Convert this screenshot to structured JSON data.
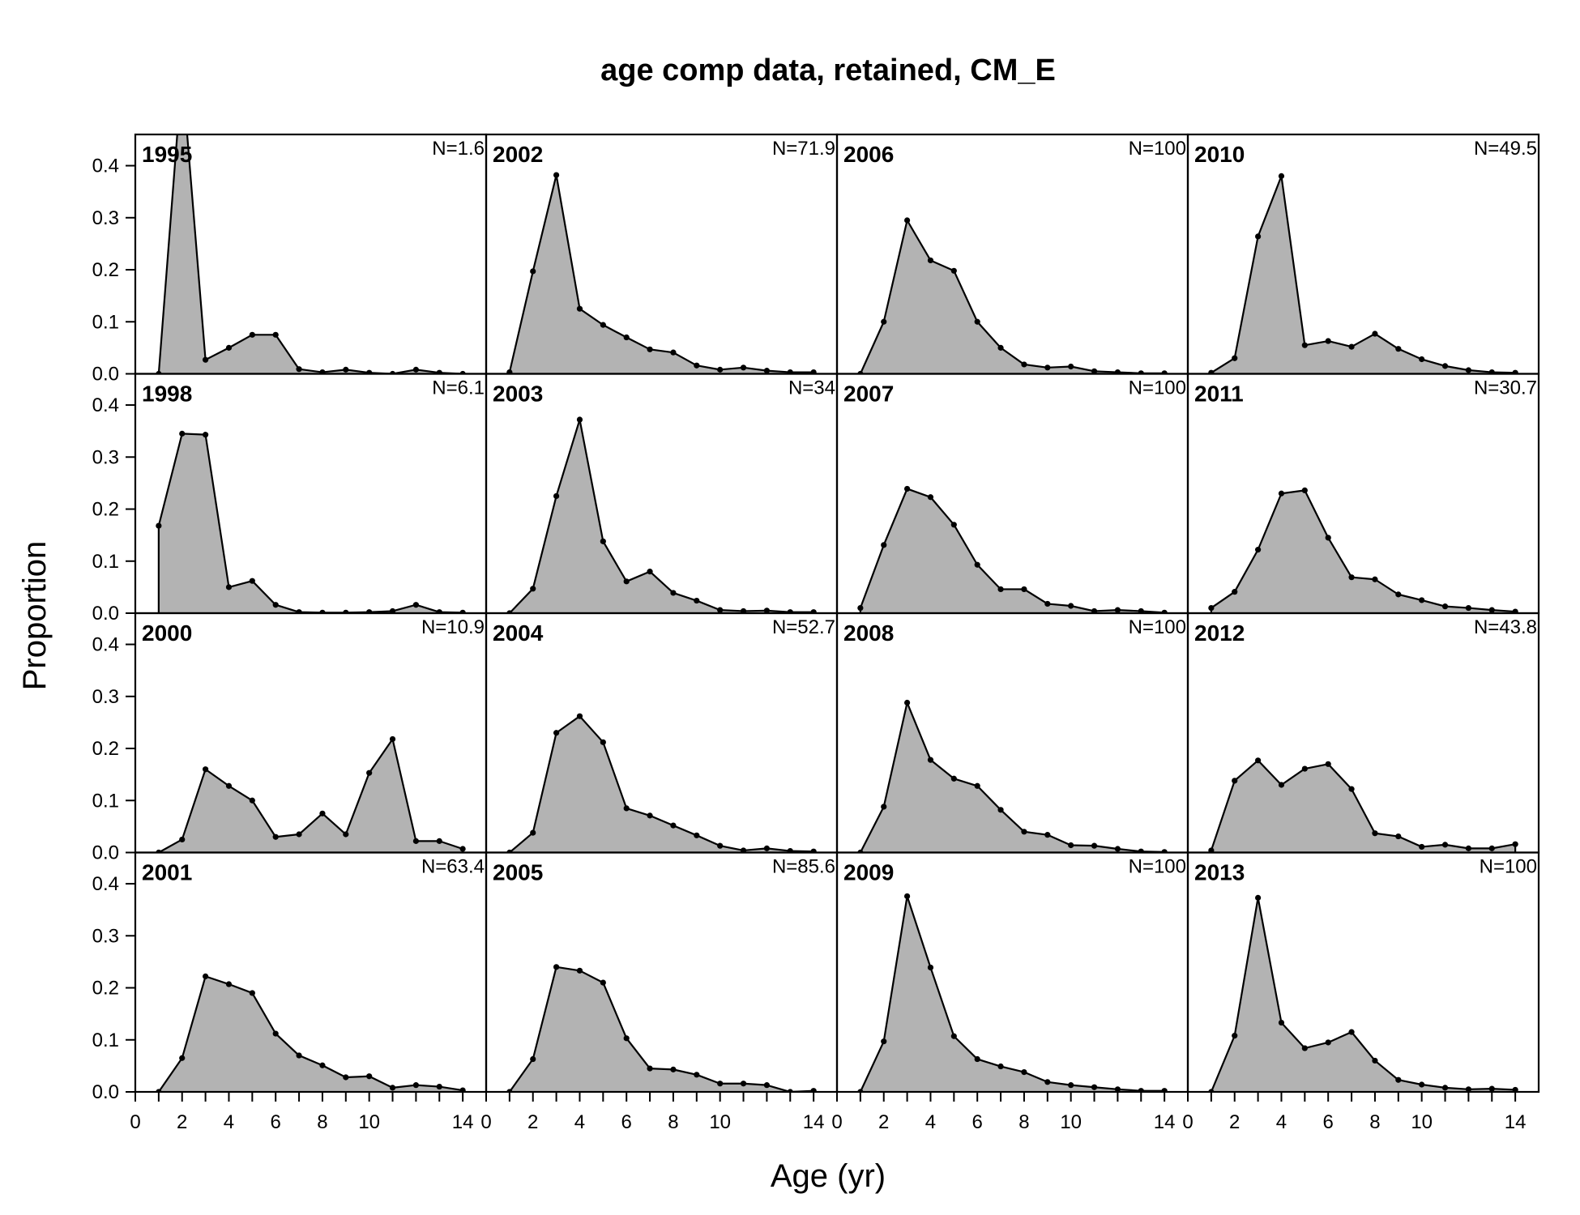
{
  "chart_data": {
    "type": "area",
    "title": "age comp data, retained, CM_E",
    "xlabel": "Age (yr)",
    "ylabel": "Proportion",
    "xlim": [
      0,
      15
    ],
    "ylim": [
      0,
      0.46
    ],
    "x_ticks": [
      "0",
      "2",
      "4",
      "6",
      "8",
      "10",
      "14"
    ],
    "y_ticks": [
      "0.0",
      "0.1",
      "0.2",
      "0.3",
      "0.4"
    ],
    "ages": [
      1,
      2,
      3,
      4,
      5,
      6,
      7,
      8,
      9,
      10,
      11,
      12,
      13,
      14
    ],
    "panels": [
      {
        "year": "1995",
        "n": "N=1.6",
        "values": [
          0,
          0.58,
          0.027,
          0.05,
          0.075,
          0.075,
          0.009,
          0.003,
          0.008,
          0.002,
          0,
          0.008,
          0.002,
          0
        ]
      },
      {
        "year": "1998",
        "n": "N=6.1",
        "values": [
          0.168,
          0.345,
          0.343,
          0.05,
          0.062,
          0.016,
          0.002,
          0.001,
          0.001,
          0.002,
          0.004,
          0.016,
          0.002,
          0.001
        ]
      },
      {
        "year": "2000",
        "n": "N=10.9",
        "values": [
          0,
          0.025,
          0.16,
          0.128,
          0.1,
          0.03,
          0.035,
          0.075,
          0.035,
          0.153,
          0.218,
          0.022,
          0.022,
          0.007
        ]
      },
      {
        "year": "2001",
        "n": "N=63.4",
        "values": [
          0,
          0.065,
          0.222,
          0.207,
          0.19,
          0.112,
          0.07,
          0.051,
          0.028,
          0.03,
          0.008,
          0.013,
          0.01,
          0.003
        ]
      },
      {
        "year": "2002",
        "n": "N=71.9",
        "values": [
          0.003,
          0.197,
          0.382,
          0.125,
          0.094,
          0.07,
          0.047,
          0.041,
          0.016,
          0.008,
          0.012,
          0.006,
          0.003,
          0.003
        ]
      },
      {
        "year": "2003",
        "n": "N=34",
        "values": [
          0,
          0.047,
          0.225,
          0.372,
          0.138,
          0.061,
          0.08,
          0.039,
          0.024,
          0.006,
          0.004,
          0.005,
          0.002,
          0.002
        ]
      },
      {
        "year": "2004",
        "n": "N=52.7",
        "values": [
          0,
          0.038,
          0.23,
          0.262,
          0.212,
          0.085,
          0.071,
          0.052,
          0.033,
          0.013,
          0.004,
          0.008,
          0.003,
          0.002
        ]
      },
      {
        "year": "2005",
        "n": "N=85.6",
        "values": [
          0,
          0.063,
          0.24,
          0.233,
          0.21,
          0.103,
          0.045,
          0.043,
          0.033,
          0.016,
          0.016,
          0.013,
          0,
          0.002
        ]
      },
      {
        "year": "2006",
        "n": "N=100",
        "values": [
          0,
          0.1,
          0.295,
          0.218,
          0.198,
          0.1,
          0.05,
          0.018,
          0.012,
          0.014,
          0.005,
          0.003,
          0.001,
          0.001
        ]
      },
      {
        "year": "2007",
        "n": "N=100",
        "values": [
          0.01,
          0.131,
          0.239,
          0.223,
          0.17,
          0.093,
          0.046,
          0.046,
          0.018,
          0.014,
          0.004,
          0.006,
          0.004,
          0.001
        ]
      },
      {
        "year": "2008",
        "n": "N=100",
        "values": [
          0,
          0.088,
          0.288,
          0.178,
          0.142,
          0.128,
          0.082,
          0.04,
          0.034,
          0.014,
          0.013,
          0.007,
          0.002,
          0.001
        ]
      },
      {
        "year": "2009",
        "n": "N=100",
        "values": [
          0,
          0.097,
          0.376,
          0.239,
          0.107,
          0.063,
          0.049,
          0.038,
          0.019,
          0.013,
          0.009,
          0.005,
          0.002,
          0.002
        ]
      },
      {
        "year": "2010",
        "n": "N=49.5",
        "values": [
          0.002,
          0.03,
          0.264,
          0.38,
          0.055,
          0.063,
          0.052,
          0.077,
          0.048,
          0.028,
          0.015,
          0.007,
          0.003,
          0.002
        ]
      },
      {
        "year": "2011",
        "n": "N=30.7",
        "values": [
          0.01,
          0.041,
          0.122,
          0.23,
          0.236,
          0.145,
          0.069,
          0.065,
          0.036,
          0.025,
          0.013,
          0.01,
          0.006,
          0.003
        ]
      },
      {
        "year": "2012",
        "n": "N=43.8",
        "values": [
          0.004,
          0.138,
          0.177,
          0.13,
          0.161,
          0.17,
          0.122,
          0.037,
          0.031,
          0.011,
          0.015,
          0.008,
          0.008,
          0.016
        ]
      },
      {
        "year": "2013",
        "n": "N=100",
        "values": [
          0,
          0.108,
          0.373,
          0.133,
          0.084,
          0.095,
          0.115,
          0.06,
          0.023,
          0.014,
          0.008,
          0.005,
          0.006,
          0.004
        ]
      }
    ]
  }
}
